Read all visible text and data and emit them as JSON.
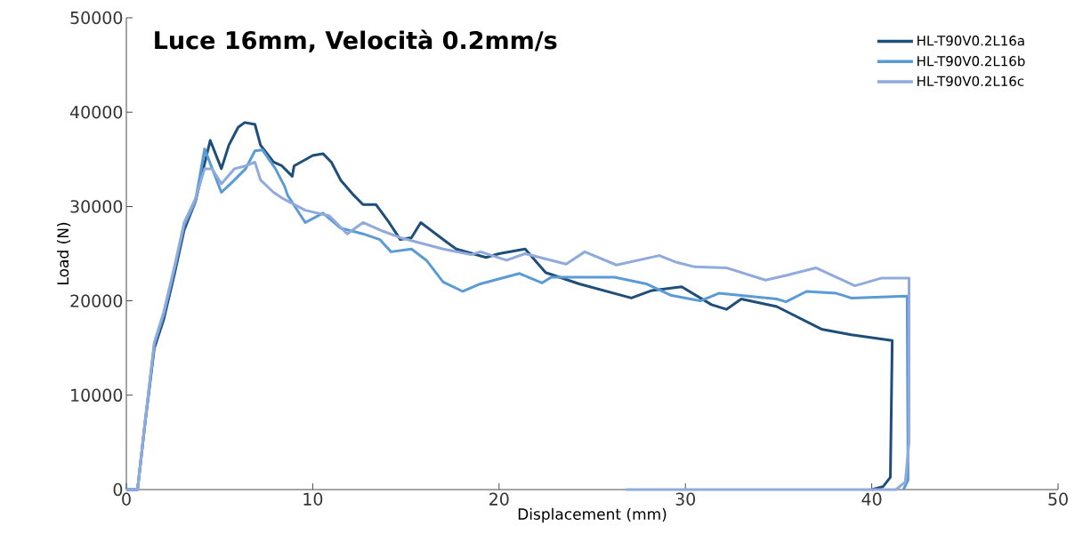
{
  "chart_data": {
    "type": "line",
    "title": "Luce 16mm, Velocità 0.2mm/s",
    "xlabel": "Displacement (mm)",
    "ylabel": "Load (N)",
    "xlim": [
      0,
      50
    ],
    "xticks": [
      0,
      10,
      20,
      30,
      40,
      50
    ],
    "ylim": [
      0,
      50000
    ],
    "yticks": [
      0,
      10000,
      20000,
      30000,
      40000,
      50000
    ],
    "grid": false,
    "legend": "top right",
    "marker": "none",
    "line_style": "solid",
    "series": [
      {
        "name": "HL-T90V0.2L16a",
        "color": "#1f4e79",
        "x": [
          0,
          0.6,
          1.0,
          1.5,
          2.0,
          2.6,
          3.1,
          3.7,
          4.5,
          5.1,
          5.5,
          6.0,
          6.35,
          6.9,
          7.2,
          7.9,
          8.35,
          8.9,
          9.0,
          10.0,
          10.55,
          11.0,
          11.5,
          12.2,
          12.7,
          13.4,
          14.1,
          14.7,
          15.3,
          15.8,
          17.0,
          17.7,
          19.3,
          20.0,
          21.4,
          22.5,
          24.3,
          27.1,
          28.2,
          29.8,
          31.4,
          32.2,
          33.0,
          34.9,
          37.3,
          38.9,
          41.1,
          41.0,
          40.6,
          40.0
        ],
        "values": [
          0,
          0,
          7000,
          15000,
          18000,
          23000,
          27500,
          30500,
          37000,
          34000,
          36500,
          38400,
          38900,
          38700,
          36500,
          34700,
          34300,
          33200,
          34300,
          35400,
          35600,
          34700,
          32800,
          31200,
          30200,
          30200,
          28300,
          26500,
          26700,
          28300,
          26500,
          25500,
          24600,
          25000,
          25500,
          23000,
          21800,
          20300,
          21100,
          21500,
          19600,
          19100,
          20200,
          19400,
          17000,
          16400,
          15800,
          1300,
          300,
          0
        ]
      },
      {
        "name": "HL-T90V0.2L16b",
        "color": "#5b9bd5",
        "x": [
          0,
          0.6,
          1.0,
          1.5,
          2.0,
          2.6,
          3.1,
          3.7,
          4.2,
          5.1,
          5.8,
          6.4,
          6.9,
          7.3,
          8.0,
          8.5,
          8.65,
          9.6,
          10.55,
          11.5,
          12.7,
          13.6,
          14.2,
          15.3,
          16.1,
          17.0,
          18.05,
          19.0,
          21.1,
          22.3,
          22.8,
          26.2,
          27.9,
          29.2,
          30.8,
          31.8,
          34.9,
          35.4,
          36.5,
          38.1,
          38.9,
          41.9,
          41.95,
          41.7
        ],
        "values": [
          0,
          0,
          7000,
          15400,
          18500,
          23500,
          28000,
          30500,
          36100,
          31500,
          32800,
          34000,
          35900,
          36000,
          34000,
          32100,
          31200,
          28300,
          29300,
          27700,
          27100,
          26500,
          25200,
          25500,
          24300,
          22000,
          21000,
          21800,
          22900,
          21900,
          22500,
          22500,
          21800,
          20600,
          20000,
          20800,
          20200,
          19900,
          21000,
          20800,
          20300,
          20500,
          1000,
          0
        ]
      },
      {
        "name": "HL-T90V0.2L16c",
        "color": "#8faadc",
        "x": [
          0,
          0.6,
          1.0,
          1.5,
          2.0,
          2.6,
          3.1,
          3.7,
          4.2,
          4.6,
          5.1,
          5.8,
          6.4,
          6.9,
          7.2,
          7.9,
          8.35,
          9.6,
          10.9,
          11.85,
          12.7,
          13.75,
          14.7,
          17.0,
          18.5,
          19.0,
          20.4,
          21.4,
          23.6,
          24.6,
          26.3,
          28.6,
          29.5,
          30.5,
          32.2,
          34.3,
          35.4,
          37.0,
          39.1,
          40.5,
          42.0,
          42.0,
          41.8,
          41.3,
          26.8
        ],
        "values": [
          0,
          0,
          7200,
          15600,
          18800,
          23800,
          28300,
          30800,
          34000,
          34000,
          32400,
          34000,
          34300,
          34700,
          32800,
          31500,
          30900,
          29600,
          29000,
          27100,
          28300,
          27400,
          26700,
          25500,
          24900,
          25200,
          24300,
          25000,
          23900,
          25200,
          23800,
          24800,
          24100,
          23600,
          23500,
          22200,
          22700,
          23500,
          21600,
          22400,
          22400,
          5000,
          800,
          0,
          0
        ]
      }
    ]
  }
}
